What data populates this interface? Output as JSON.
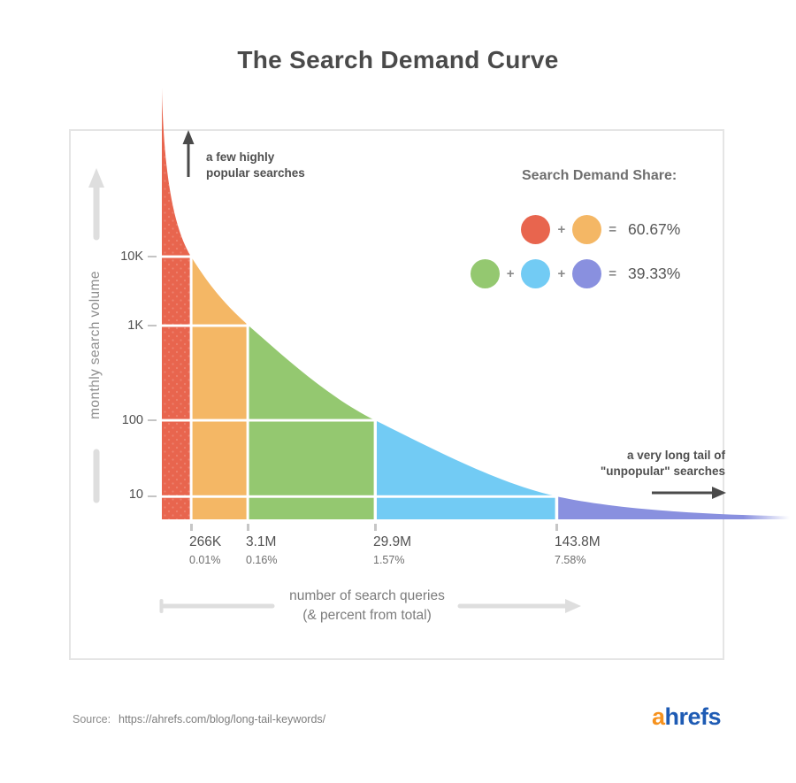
{
  "title": "The Search Demand Curve",
  "yaxis": {
    "label": "monthly search volume",
    "ticks": [
      {
        "label": "10K"
      },
      {
        "label": "1K"
      },
      {
        "label": "100"
      },
      {
        "label": "10"
      }
    ]
  },
  "xaxis": {
    "label_line1": "number of search queries",
    "label_line2": "(& percent from total)",
    "ticks": [
      {
        "value": "266K",
        "percent": "0.01%"
      },
      {
        "value": "3.1M",
        "percent": "0.16%"
      },
      {
        "value": "29.9M",
        "percent": "1.57%"
      },
      {
        "value": "143.8M",
        "percent": "7.58%"
      }
    ]
  },
  "annotations": {
    "head_line1": "a few highly",
    "head_line2": "popular searches",
    "tail_line1": "a very long tail of",
    "tail_line2": "\"unpopular\" searches"
  },
  "legend": {
    "title": "Search Demand Share:",
    "plus": "+",
    "equals": "=",
    "row1_value": "60.67%",
    "row2_value": "39.33%"
  },
  "colors": {
    "red": "#e8654e",
    "orange": "#f4b765",
    "green": "#94c870",
    "blue": "#72cbf4",
    "purple": "#8990df"
  },
  "source": {
    "label": "Source:",
    "url": "https://ahrefs.com/blog/long-tail-keywords/"
  },
  "logo": {
    "part1": "a",
    "part2": "hrefs",
    "color1": "#f6921e",
    "color2": "#1e5bb4"
  },
  "chart_data": {
    "type": "area",
    "title": "The Search Demand Curve",
    "xlabel": "number of search queries (& percent from total)",
    "ylabel": "monthly search volume",
    "y_scale": "log",
    "y_ticks": [
      10,
      100,
      1000,
      10000
    ],
    "y_tick_labels": [
      "10",
      "100",
      "1K",
      "10K"
    ],
    "x_tick_labels": [
      "266K",
      "3.1M",
      "29.9M",
      "143.8M"
    ],
    "x_tick_percent_of_total": [
      0.01,
      0.16,
      1.57,
      7.58
    ],
    "grid": false,
    "legend_position": "top-right",
    "segments": [
      {
        "name": "head",
        "color": "#e8654e",
        "monthly_volume_range": ">10K",
        "cumulative_queries": "266K",
        "cumulative_percent": 0.01
      },
      {
        "name": "high",
        "color": "#f4b765",
        "monthly_volume_range": "1K-10K",
        "cumulative_queries": "3.1M",
        "cumulative_percent": 0.16
      },
      {
        "name": "middle",
        "color": "#94c870",
        "monthly_volume_range": "100-1K",
        "cumulative_queries": "29.9M",
        "cumulative_percent": 1.57
      },
      {
        "name": "low",
        "color": "#72cbf4",
        "monthly_volume_range": "10-100",
        "cumulative_queries": "143.8M",
        "cumulative_percent": 7.58
      },
      {
        "name": "long-tail",
        "color": "#8990df",
        "monthly_volume_range": "<10",
        "cumulative_queries": null,
        "cumulative_percent": null
      }
    ],
    "shares": [
      {
        "segments": [
          "head",
          "high"
        ],
        "value_percent": 60.67
      },
      {
        "segments": [
          "middle",
          "low",
          "long-tail"
        ],
        "value_percent": 39.33
      }
    ],
    "annotations": [
      "a few highly popular searches",
      "a very long tail of \"unpopular\" searches"
    ]
  }
}
